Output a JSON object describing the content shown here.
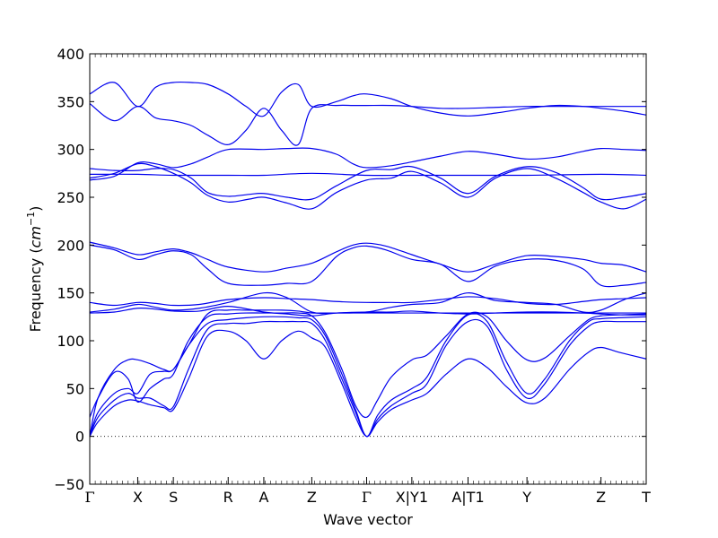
{
  "chart_data": {
    "type": "line",
    "title": "",
    "xlabel": "Wave vector",
    "ylabel_main": "Frequency (",
    "ylabel_unit": "cm",
    "ylabel_exp": "−1",
    "ylabel_close": ")",
    "ylim": [
      -50,
      400
    ],
    "yticks": [
      -50,
      0,
      50,
      100,
      150,
      200,
      250,
      300,
      350,
      400
    ],
    "ytick_labels": [
      "−50",
      "0",
      "50",
      "100",
      "150",
      "200",
      "250",
      "300",
      "350",
      "400"
    ],
    "xlim": [
      0,
      20.3
    ],
    "high_symmetry_points": [
      {
        "label": "Γ",
        "x": 0
      },
      {
        "label": "X",
        "x": 1.75
      },
      {
        "label": "S",
        "x": 3.05
      },
      {
        "label": "R",
        "x": 5.05
      },
      {
        "label": "A",
        "x": 6.35
      },
      {
        "label": "Z",
        "x": 8.1
      },
      {
        "label": "Γ",
        "x": 10.1
      },
      {
        "label": "X|Y1",
        "x": 11.75
      },
      {
        "label": "A|T1",
        "x": 13.8
      },
      {
        "label": "Y",
        "x": 15.95
      },
      {
        "label": "Z",
        "x": 18.65
      },
      {
        "label": "T",
        "x": 20.3
      }
    ],
    "zero_line": true,
    "grid": false,
    "line_color": "#0000ee",
    "series": [
      {
        "x": [
          0,
          0.3,
          0.9,
          1.4,
          1.75,
          2.2,
          2.7,
          3.05,
          3.6,
          4.3,
          5.05,
          5.7,
          6.35,
          7.0,
          7.6,
          8.1,
          8.6,
          9.2,
          9.7,
          10.1,
          10.5,
          11.0,
          11.75,
          12.3,
          13.0,
          13.8,
          14.5,
          15.2,
          15.95,
          16.6,
          17.5,
          18.2,
          18.65,
          19.3,
          20.3
        ],
        "y": [
          0,
          15,
          32,
          38,
          37,
          33,
          30,
          28,
          60,
          105,
          110,
          100,
          81,
          100,
          110,
          103,
          93,
          55,
          20,
          0,
          15,
          28,
          38,
          45,
          65,
          81,
          72,
          52,
          35,
          40,
          70,
          88,
          93,
          88,
          81
        ]
      },
      {
        "x": [
          0,
          0.3,
          0.9,
          1.4,
          1.75,
          2.2,
          2.7,
          3.05,
          3.6,
          4.3,
          5.05,
          5.7,
          6.35,
          7.0,
          7.6,
          8.1,
          8.6,
          9.2,
          9.7,
          10.1,
          10.5,
          11.0,
          11.75,
          12.3,
          13.0,
          13.8,
          14.5,
          15.2,
          15.95,
          16.6,
          17.5,
          18.2,
          18.65,
          19.3,
          20.3
        ],
        "y": [
          0,
          20,
          38,
          45,
          40,
          40,
          32,
          31,
          70,
          112,
          118,
          118,
          120,
          120,
          120,
          118,
          100,
          60,
          25,
          0,
          18,
          32,
          45,
          55,
          95,
          120,
          115,
          70,
          40,
          55,
          95,
          115,
          120,
          120,
          120
        ]
      },
      {
        "x": [
          0,
          0.3,
          0.9,
          1.4,
          1.75,
          2.2,
          2.7,
          3.05,
          3.6,
          4.3,
          5.05,
          5.7,
          6.35,
          7.0,
          7.6,
          8.1,
          8.6,
          9.2,
          9.7,
          10.1,
          10.5,
          11.0,
          11.75,
          12.3,
          13.0,
          13.8,
          14.5,
          15.2,
          15.95,
          16.6,
          17.5,
          18.2,
          18.65,
          19.3,
          20.3
        ],
        "y": [
          0,
          25,
          45,
          50,
          45,
          65,
          68,
          70,
          95,
          118,
          122,
          124,
          125,
          125,
          124,
          122,
          105,
          65,
          28,
          0,
          22,
          38,
          50,
          62,
          100,
          127,
          120,
          78,
          45,
          60,
          100,
          120,
          123,
          124,
          125
        ]
      },
      {
        "x": [
          0,
          0.3,
          0.9,
          1.4,
          1.75,
          2.2,
          2.7,
          3.05,
          3.6,
          4.3,
          5.05,
          5.7,
          6.35,
          7.0,
          7.6,
          8.1,
          8.6,
          9.2,
          9.7,
          10.1,
          10.5,
          11.0,
          11.75,
          12.3,
          13.0,
          13.8,
          14.5,
          15.2,
          15.95,
          16.6,
          17.5,
          18.2,
          18.65,
          19.3,
          20.3
        ],
        "y": [
          20,
          40,
          67,
          60,
          36,
          50,
          60,
          65,
          100,
          125,
          128,
          129,
          129,
          129,
          129,
          126,
          108,
          70,
          32,
          20,
          38,
          62,
          80,
          85,
          105,
          128,
          125,
          100,
          80,
          82,
          105,
          122,
          126,
          127,
          128
        ]
      },
      {
        "x": [
          0,
          0.3,
          0.9,
          1.4,
          1.75,
          2.2,
          2.7,
          3.05,
          3.6,
          4.3,
          5.05,
          5.7,
          6.35,
          7.0,
          7.6,
          8.1,
          8.6,
          9.2,
          9.7,
          10.1,
          10.5,
          11.0,
          11.75,
          12.3,
          13.0,
          13.8,
          14.5,
          15.2,
          15.95,
          16.6,
          17.5,
          18.2,
          18.65,
          19.3,
          20.3
        ],
        "y": [
          0,
          40,
          70,
          80,
          80,
          76,
          70,
          70,
          95,
          128,
          132,
          132,
          132,
          132,
          131,
          129,
          129,
          129,
          129,
          129,
          129,
          129,
          129,
          129,
          129,
          129,
          129,
          129,
          129,
          129,
          129,
          129,
          129,
          129,
          129
        ]
      },
      {
        "x": [
          0,
          0.9,
          1.75,
          2.4,
          3.05,
          4.0,
          5.05,
          6.35,
          7.2,
          8.1,
          9.0,
          10.1,
          11.0,
          11.75,
          12.8,
          13.8,
          14.8,
          15.95,
          17.0,
          18.0,
          18.65,
          19.5,
          20.3
        ],
        "y": [
          130,
          133,
          138,
          135,
          132,
          134,
          140,
          150,
          145,
          130,
          129,
          130,
          135,
          138,
          140,
          150,
          142,
          140,
          138,
          130,
          132,
          143,
          150
        ]
      },
      {
        "x": [
          0,
          0.9,
          1.75,
          2.4,
          3.05,
          4.0,
          5.05,
          6.35,
          7.2,
          8.1,
          9.0,
          10.1,
          11.0,
          11.75,
          12.8,
          13.8,
          14.8,
          15.95,
          17.0,
          18.0,
          18.65,
          19.5,
          20.3
        ],
        "y": [
          140,
          137,
          140,
          139,
          137,
          138,
          143,
          145,
          144,
          143,
          141,
          140,
          140,
          140,
          143,
          146,
          144,
          139,
          138,
          141,
          143,
          144,
          145
        ]
      },
      {
        "x": [
          0,
          0.9,
          1.75,
          2.4,
          3.05,
          4.0,
          5.05,
          6.35,
          7.2,
          8.1,
          9.0,
          10.1,
          11.0,
          11.75,
          12.8,
          13.8,
          14.8,
          15.95,
          17.0,
          18.0,
          18.65,
          19.5,
          20.3
        ],
        "y": [
          129,
          130,
          134,
          133,
          131,
          131,
          136,
          130,
          128,
          126,
          129,
          130,
          130,
          131,
          129,
          128,
          129,
          130,
          130,
          129,
          128,
          127,
          127
        ]
      },
      {
        "x": [
          0,
          0.9,
          1.75,
          2.4,
          3.05,
          3.7,
          4.3,
          5.05,
          6.35,
          7.2,
          8.1,
          9.0,
          9.6,
          10.1,
          10.8,
          11.75,
          12.8,
          13.8,
          14.8,
          15.95,
          17.0,
          18.0,
          18.65,
          19.5,
          20.3
        ],
        "y": [
          200,
          195,
          185,
          190,
          194,
          190,
          175,
          160,
          158,
          160,
          162,
          188,
          197,
          199,
          195,
          185,
          180,
          162,
          178,
          185,
          184,
          175,
          158,
          158,
          161
        ]
      },
      {
        "x": [
          0,
          0.9,
          1.75,
          2.4,
          3.05,
          3.7,
          4.3,
          5.05,
          6.35,
          7.2,
          8.1,
          9.0,
          9.6,
          10.1,
          10.8,
          11.75,
          12.8,
          13.8,
          14.8,
          15.95,
          17.0,
          18.0,
          18.65,
          19.5,
          20.3
        ],
        "y": [
          203,
          197,
          190,
          193,
          196,
          192,
          185,
          177,
          172,
          176,
          181,
          193,
          200,
          202,
          199,
          190,
          180,
          172,
          180,
          189,
          188,
          185,
          181,
          179,
          172
        ]
      },
      {
        "x": [
          0,
          0.9,
          1.75,
          2.4,
          3.05,
          3.7,
          4.3,
          5.05,
          5.8,
          6.35,
          7.2,
          8.1,
          9.0,
          10.1,
          11.0,
          11.75,
          12.8,
          13.8,
          14.8,
          15.95,
          17.0,
          18.0,
          18.65,
          19.5,
          20.3
        ],
        "y": [
          270,
          275,
          285,
          282,
          275,
          265,
          252,
          245,
          248,
          250,
          244,
          238,
          255,
          268,
          270,
          277,
          265,
          250,
          270,
          280,
          270,
          255,
          245,
          238,
          248
        ]
      },
      {
        "x": [
          0,
          0.9,
          1.75,
          2.4,
          3.05,
          3.7,
          4.3,
          5.05,
          5.8,
          6.35,
          7.2,
          8.1,
          9.0,
          10.1,
          11.0,
          11.75,
          12.8,
          13.8,
          14.8,
          15.95,
          17.0,
          18.0,
          18.65,
          19.5,
          20.3
        ],
        "y": [
          280,
          278,
          278,
          280,
          279,
          270,
          255,
          251,
          253,
          254,
          250,
          248,
          262,
          278,
          279,
          282,
          270,
          254,
          272,
          282,
          276,
          260,
          248,
          250,
          254
        ]
      },
      {
        "x": [
          0,
          1.75,
          3.05,
          5.05,
          6.35,
          8.1,
          10.1,
          11.75,
          13.8,
          15.95,
          18.65,
          20.3
        ],
        "y": [
          274,
          274,
          273,
          273,
          273,
          275,
          273,
          273,
          273,
          273,
          274,
          273
        ]
      },
      {
        "x": [
          0,
          0.9,
          1.75,
          2.4,
          3.05,
          3.7,
          4.3,
          5.05,
          6.35,
          7.2,
          8.1,
          9.0,
          9.6,
          10.1,
          11.0,
          11.75,
          12.8,
          13.8,
          14.8,
          15.95,
          17.0,
          18.0,
          18.65,
          19.5,
          20.3
        ],
        "y": [
          268,
          272,
          286,
          285,
          281,
          285,
          292,
          300,
          300,
          301,
          301,
          295,
          285,
          281,
          283,
          287,
          293,
          298,
          295,
          290,
          292,
          298,
          301,
          300,
          299
        ]
      },
      {
        "x": [
          0,
          0.9,
          1.75,
          2.4,
          3.05,
          3.7,
          4.3,
          5.05,
          5.7,
          6.35,
          7.0,
          7.6,
          8.1,
          9.0,
          9.6,
          10.1,
          11.0,
          11.75,
          12.8,
          13.8,
          14.8,
          15.95,
          17.0,
          18.0,
          18.65,
          19.5,
          20.3
        ],
        "y": [
          348,
          330,
          345,
          333,
          330,
          325,
          315,
          305,
          320,
          343,
          320,
          305,
          343,
          346,
          346,
          346,
          346,
          345,
          343,
          343,
          344,
          345,
          345,
          345,
          345,
          345,
          345
        ]
      },
      {
        "x": [
          0,
          0.9,
          1.75,
          2.4,
          3.05,
          3.7,
          4.3,
          5.05,
          5.7,
          6.35,
          7.0,
          7.6,
          8.1,
          9.0,
          9.6,
          10.1,
          11.0,
          11.75,
          12.8,
          13.8,
          14.8,
          15.95,
          17.0,
          18.0,
          18.65,
          19.5,
          20.3
        ],
        "y": [
          358,
          370,
          345,
          365,
          370,
          370,
          368,
          358,
          345,
          335,
          360,
          368,
          345,
          350,
          356,
          358,
          353,
          345,
          338,
          335,
          338,
          343,
          346,
          345,
          343,
          340,
          336
        ]
      }
    ]
  }
}
